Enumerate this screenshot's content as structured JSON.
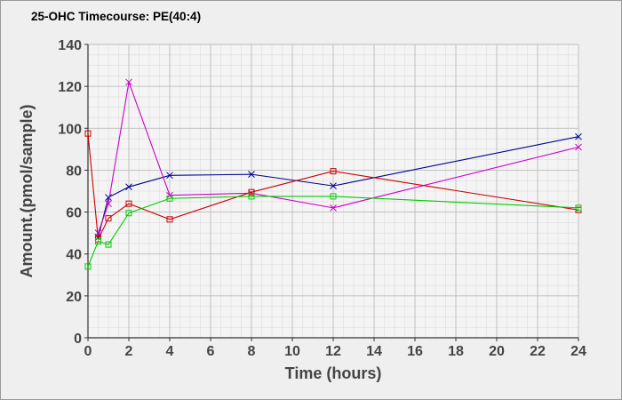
{
  "chart_data": {
    "type": "line",
    "title": "25-OHC Timecourse: PE(40:4)",
    "xlabel": "Time (hours)",
    "ylabel": "Amount.(pmol/sample)",
    "xlim": [
      0,
      24
    ],
    "ylim": [
      0,
      140
    ],
    "x_ticks": [
      0,
      2,
      4,
      6,
      8,
      10,
      12,
      14,
      16,
      18,
      20,
      22,
      24
    ],
    "y_ticks": [
      0,
      20,
      40,
      60,
      80,
      100,
      120,
      140
    ],
    "grid": true,
    "legend": false,
    "series": [
      {
        "color": "#00008b",
        "marker": "x",
        "points": [
          [
            0.5,
            48
          ],
          [
            1,
            67
          ],
          [
            2,
            72
          ],
          [
            4,
            77.5
          ],
          [
            8,
            78
          ],
          [
            12,
            72.5
          ],
          [
            24,
            96
          ]
        ]
      },
      {
        "color": "#cc00cc",
        "marker": "x",
        "points": [
          [
            0.5,
            50
          ],
          [
            1,
            64
          ],
          [
            2,
            122
          ],
          [
            4,
            68
          ],
          [
            8,
            69
          ],
          [
            12,
            62
          ],
          [
            24,
            91
          ]
        ]
      },
      {
        "color": "#cc0000",
        "marker": "square",
        "points": [
          [
            0,
            97.5
          ],
          [
            0.5,
            47
          ],
          [
            1,
            57
          ],
          [
            2,
            64
          ],
          [
            4,
            56.5
          ],
          [
            8,
            69.5
          ],
          [
            12,
            79.5
          ],
          [
            24,
            61
          ]
        ]
      },
      {
        "color": "#00cc00",
        "marker": "square",
        "points": [
          [
            0,
            34
          ],
          [
            0.5,
            46
          ],
          [
            1,
            44.5
          ],
          [
            2,
            59.5
          ],
          [
            4,
            66.5
          ],
          [
            8,
            67.5
          ],
          [
            12,
            67.5
          ],
          [
            24,
            62
          ]
        ]
      }
    ]
  }
}
